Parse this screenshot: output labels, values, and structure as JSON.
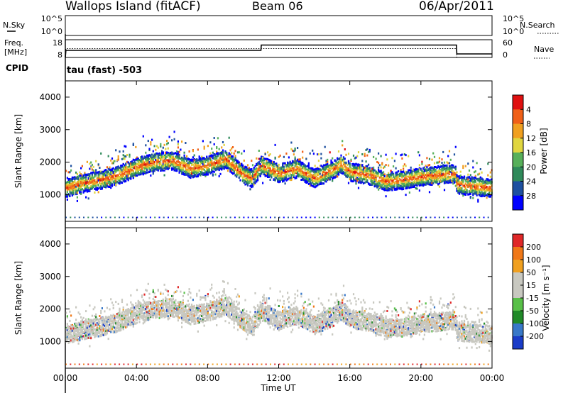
{
  "header": {
    "station": "Wallops Island (fitACF)",
    "beam": "Beam 06",
    "date": "06/Apr/2011"
  },
  "labels": {
    "nsky": "N.Sky",
    "nsearch": "N.Search",
    "freq_line1": "Freq.",
    "freq_line2": "[MHz]",
    "nave": "Nave",
    "cpid": "CPID",
    "cpid_value": "tau (fast) -503",
    "noise_ticks_left": [
      "10^5",
      "10^0"
    ],
    "noise_ticks_right": [
      "10^5",
      "10^0"
    ],
    "freq_ticks": [
      "18",
      "8"
    ],
    "nave_ticks": [
      "60",
      "0"
    ]
  },
  "chart_data": [
    {
      "type": "line",
      "name": "noise",
      "series": [
        {
          "name": "N.Sky",
          "style": "solid"
        },
        {
          "name": "N.Search",
          "style": "dotted"
        }
      ],
      "ylim": [
        "10^0",
        "10^5"
      ]
    },
    {
      "type": "line",
      "name": "frequency-nave",
      "x_hours": [
        0,
        0.03,
        11,
        11.02,
        22,
        22.02,
        24
      ],
      "freq_values": [
        8,
        12,
        12,
        15,
        15,
        10,
        10
      ],
      "nave_values": [
        0,
        30,
        30,
        30,
        30,
        0,
        0
      ],
      "freq_ylim": [
        8,
        18
      ],
      "nave_ylim": [
        0,
        60
      ]
    },
    {
      "type": "heatmap",
      "name": "power",
      "ylabel": "Slant Range [km]",
      "yticks": [
        1000,
        2000,
        3000,
        4000
      ],
      "ylim": [
        180,
        4500
      ],
      "colorbar_label": "Power [dB]",
      "colorbar_ticks": [
        "4",
        "8",
        "12",
        "16",
        "20",
        "24",
        "28"
      ],
      "colors": [
        "#0000ff",
        "#1e50a0",
        "#2f8a5a",
        "#57b05a",
        "#e0d640",
        "#f0a020",
        "#f06018",
        "#e01010"
      ],
      "range_centre_trace_km": [
        [
          0,
          1200
        ],
        [
          1,
          1350
        ],
        [
          2,
          1450
        ],
        [
          3,
          1600
        ],
        [
          4,
          1850
        ],
        [
          5,
          2000
        ],
        [
          6,
          2050
        ],
        [
          7,
          1800
        ],
        [
          8,
          1900
        ],
        [
          9,
          2100
        ],
        [
          10,
          1600
        ],
        [
          10.5,
          1500
        ],
        [
          11,
          1900
        ],
        [
          12,
          1650
        ],
        [
          13,
          1800
        ],
        [
          14,
          1500
        ],
        [
          15,
          1750
        ],
        [
          15.5,
          1950
        ],
        [
          16,
          1700
        ],
        [
          17,
          1600
        ],
        [
          18,
          1400
        ],
        [
          19,
          1450
        ],
        [
          20,
          1550
        ],
        [
          21,
          1600
        ],
        [
          21.9,
          1650
        ],
        [
          22,
          1300
        ],
        [
          24,
          1200
        ]
      ]
    },
    {
      "type": "heatmap",
      "name": "velocity",
      "ylabel": "Slant Range [km]",
      "yticks": [
        1000,
        2000,
        3000,
        4000
      ],
      "ylim": [
        180,
        4500
      ],
      "colorbar_label": "Velocity [m s⁻¹]",
      "colorbar_ticks": [
        "200",
        "100",
        "50",
        "15",
        "-15",
        "-50",
        "-100",
        "-200"
      ],
      "colors": [
        "#1a3cc8",
        "#3878c8",
        "#208a28",
        "#58c048",
        "#c8c8c0",
        "#c8c8c0",
        "#f0a020",
        "#f07818",
        "#e02828"
      ],
      "xlabel": "Time UT",
      "xticks": [
        "00:00",
        "04:00",
        "08:00",
        "12:00",
        "16:00",
        "20:00",
        "00:00"
      ]
    }
  ]
}
